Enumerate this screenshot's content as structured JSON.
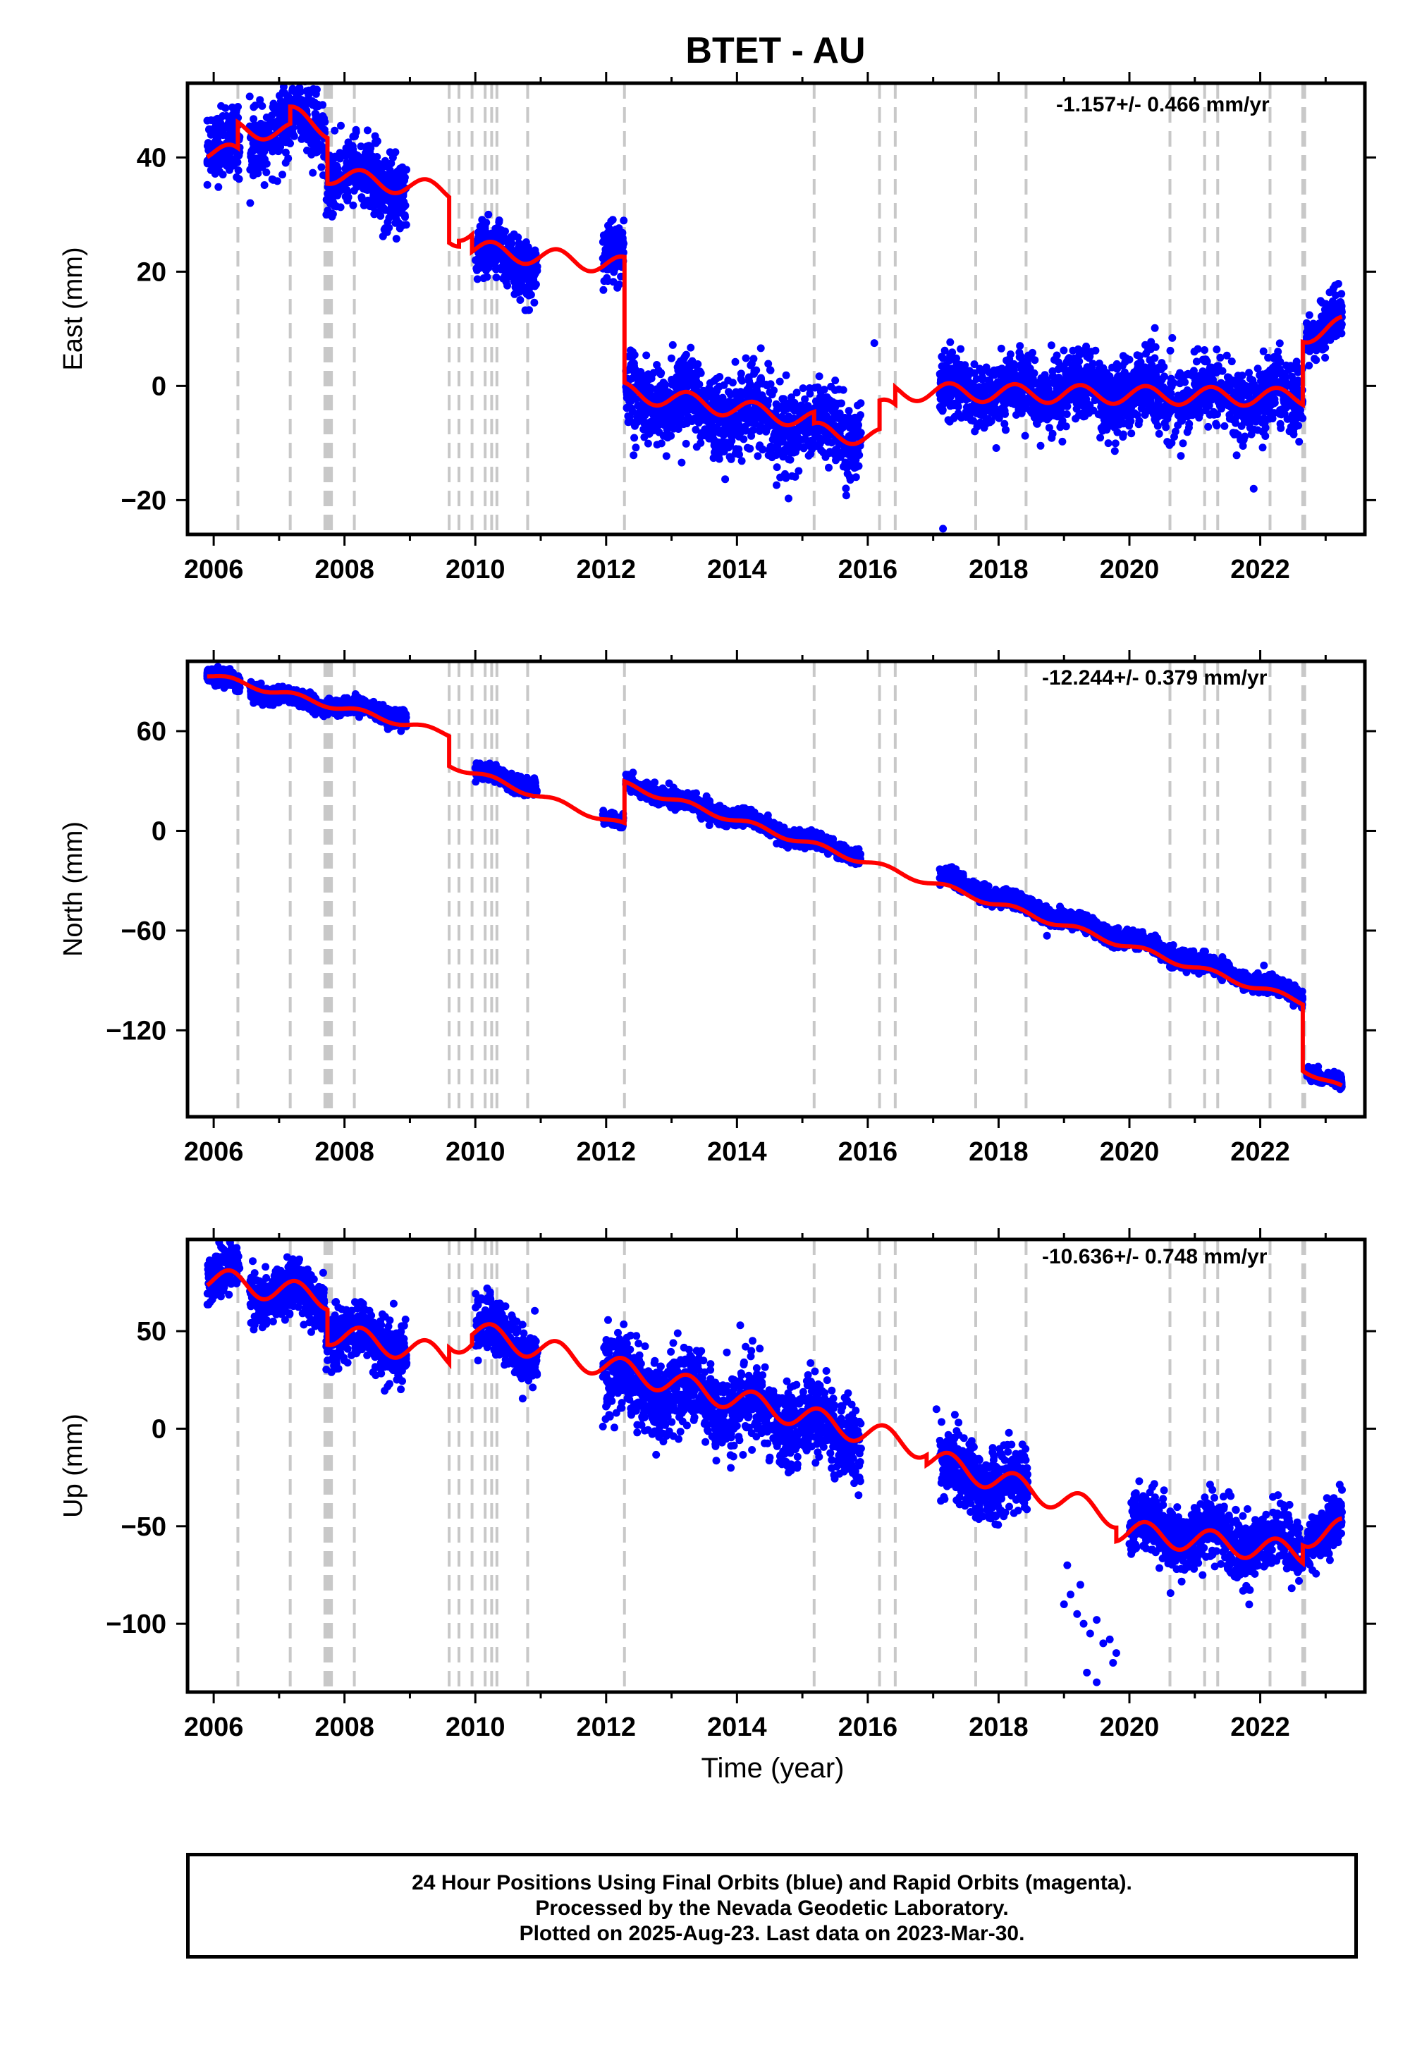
{
  "title": "BTET - AU",
  "x_axis_label": "Time (year)",
  "caption": {
    "line1": "24 Hour Positions Using Final Orbits (blue) and Rapid Orbits (magenta).",
    "line2": "Processed by the Nevada Geodetic Laboratory.",
    "line3": "Plotted on 2025-Aug-23. Last data on 2023-Mar-30."
  },
  "colors": {
    "observations": "#0000ff",
    "model": "#ff0000",
    "events": "#c8c8c8"
  },
  "chart_data": [
    {
      "type": "scatter",
      "ylabel": "East (mm)",
      "rate_label": "-1.157+/- 0.466 mm/yr",
      "xlim": [
        2005.6,
        2023.6
      ],
      "ylim": [
        -26,
        53
      ],
      "yticks": [
        -20,
        0,
        20,
        40
      ],
      "xticks": [
        2006,
        2008,
        2010,
        2012,
        2014,
        2016,
        2018,
        2020,
        2022
      ],
      "events": [
        2006.37,
        2007.17,
        2007.7,
        2007.74,
        2007.78,
        2007.8,
        2008.15,
        2009.6,
        2009.75,
        2009.95,
        2010.15,
        2010.25,
        2010.33,
        2010.8,
        2012.28,
        2015.18,
        2016.18,
        2016.42,
        2017.65,
        2018.42,
        2020.62,
        2021.15,
        2021.35,
        2022.15,
        2022.65,
        2022.68
      ],
      "observations": [
        {
          "x": [
            2005.9,
            2006.4
          ],
          "y": [
            41,
            42
          ],
          "scatter": 3
        },
        {
          "x": [
            2006.55,
            2007.25
          ],
          "y": [
            43,
            46
          ],
          "scatter": 3
        },
        {
          "x": [
            2007.25,
            2007.7
          ],
          "y": [
            46,
            46
          ],
          "scatter": 3
        },
        {
          "x": [
            2007.72,
            2008.95
          ],
          "y": [
            37,
            35
          ],
          "scatter": 3
        },
        {
          "x": [
            2010.0,
            2010.95
          ],
          "y": [
            23,
            21
          ],
          "scatter": 2.5
        },
        {
          "x": [
            2011.95,
            2012.27
          ],
          "y": [
            23,
            22
          ],
          "scatter": 2.5
        },
        {
          "x": [
            2012.3,
            2015.9
          ],
          "y": [
            -1,
            -9
          ],
          "scatter": 3.5
        },
        {
          "x": [
            2017.1,
            2022.65
          ],
          "y": [
            -1,
            -2
          ],
          "scatter": 3
        },
        {
          "x": [
            2022.7,
            2023.25
          ],
          "y": [
            10,
            11
          ],
          "scatter": 2
        }
      ],
      "outliers": [
        [
          2017.15,
          -25
        ],
        [
          2016.1,
          7.5
        ],
        [
          2021.9,
          -18
        ],
        [
          2010.2,
          30
        ],
        [
          2007.05,
          37
        ]
      ],
      "model": {
        "segments": [
          {
            "x": [
              2005.9,
              2006.37
            ],
            "y": [
              41,
              40.5
            ]
          },
          {
            "x": [
              2006.37,
              2007.17
            ],
            "y": [
              45,
              44.5
            ]
          },
          {
            "x": [
              2007.17,
              2007.74
            ],
            "y": [
              47.5,
              45
            ]
          },
          {
            "x": [
              2007.74,
              2009.6
            ],
            "y": [
              37,
              34
            ]
          },
          {
            "x": [
              2009.6,
              2009.75
            ],
            "y": [
              26,
              26
            ]
          },
          {
            "x": [
              2009.75,
              2009.95
            ],
            "y": [
              27,
              27
            ]
          },
          {
            "x": [
              2009.95,
              2012.28
            ],
            "y": [
              24,
              21
            ]
          },
          {
            "x": [
              2012.28,
              2015.18
            ],
            "y": [
              -1,
              -6
            ]
          },
          {
            "x": [
              2015.18,
              2016.18
            ],
            "y": [
              -8,
              -9
            ]
          },
          {
            "x": [
              2016.18,
              2016.42
            ],
            "y": [
              -4,
              -4
            ]
          },
          {
            "x": [
              2016.42,
              2022.65
            ],
            "y": [
              -1,
              -2
            ]
          },
          {
            "x": [
              2022.65,
              2023.25
            ],
            "y": [
              9,
              10.5
            ]
          }
        ],
        "seasonal_amplitude": 1.6
      }
    },
    {
      "type": "scatter",
      "ylabel": "North (mm)",
      "rate_label": "-12.244+/- 0.379 mm/yr",
      "xlim": [
        2005.6,
        2023.6
      ],
      "ylim": [
        -172,
        102
      ],
      "yticks": [
        -120,
        -60,
        0,
        60
      ],
      "xticks": [
        2006,
        2008,
        2010,
        2012,
        2014,
        2016,
        2018,
        2020,
        2022
      ],
      "events": [
        2006.37,
        2007.17,
        2007.7,
        2007.74,
        2007.78,
        2007.8,
        2008.15,
        2009.6,
        2009.75,
        2009.95,
        2010.15,
        2010.25,
        2010.33,
        2010.8,
        2012.28,
        2015.18,
        2016.18,
        2016.42,
        2017.65,
        2018.42,
        2020.62,
        2021.15,
        2021.35,
        2022.15,
        2022.65,
        2022.68
      ],
      "observations": [
        {
          "x": [
            2005.9,
            2006.4
          ],
          "y": [
            95,
            87
          ],
          "scatter": 2.5
        },
        {
          "x": [
            2006.55,
            2007.7
          ],
          "y": [
            85,
            75
          ],
          "scatter": 2.5
        },
        {
          "x": [
            2007.72,
            2008.95
          ],
          "y": [
            77,
            68
          ],
          "scatter": 2.5
        },
        {
          "x": [
            2010.0,
            2010.95
          ],
          "y": [
            36,
            26
          ],
          "scatter": 2.5
        },
        {
          "x": [
            2011.95,
            2012.27
          ],
          "y": [
            8,
            3
          ],
          "scatter": 2
        },
        {
          "x": [
            2012.3,
            2015.9
          ],
          "y": [
            28,
            -15
          ],
          "scatter": 2.5
        },
        {
          "x": [
            2017.1,
            2022.65
          ],
          "y": [
            -28,
            -100
          ],
          "scatter": 2.5
        },
        {
          "x": [
            2022.7,
            2023.25
          ],
          "y": [
            -143,
            -153
          ],
          "scatter": 2
        }
      ],
      "outliers": [],
      "model": {
        "segments": [
          {
            "x": [
              2005.9,
              2009.6
            ],
            "y": [
              94,
              58
            ]
          },
          {
            "x": [
              2009.6,
              2012.28
            ],
            "y": [
              40,
              3
            ]
          },
          {
            "x": [
              2012.28,
              2022.65
            ],
            "y": [
              28,
              -103
            ]
          },
          {
            "x": [
              2022.65,
              2023.25
            ],
            "y": [
              -143,
              -155
            ]
          }
        ],
        "seasonal_amplitude": 1.8
      }
    },
    {
      "type": "scatter",
      "ylabel": "Up (mm)",
      "rate_label": "-10.636+/- 0.748 mm/yr",
      "xlim": [
        2005.6,
        2023.6
      ],
      "ylim": [
        -135,
        97
      ],
      "yticks": [
        -100,
        -50,
        0,
        50
      ],
      "xticks": [
        2006,
        2008,
        2010,
        2012,
        2014,
        2016,
        2018,
        2020,
        2022
      ],
      "events": [
        2006.37,
        2007.17,
        2007.7,
        2007.74,
        2007.78,
        2007.8,
        2008.15,
        2009.6,
        2009.75,
        2009.95,
        2010.15,
        2010.25,
        2010.33,
        2010.8,
        2012.28,
        2015.18,
        2016.18,
        2016.42,
        2017.65,
        2018.42,
        2020.62,
        2021.15,
        2021.35,
        2022.15,
        2022.65,
        2022.68
      ],
      "observations": [
        {
          "x": [
            2005.9,
            2006.4
          ],
          "y": [
            76,
            80
          ],
          "scatter": 6
        },
        {
          "x": [
            2006.55,
            2007.7
          ],
          "y": [
            72,
            66
          ],
          "scatter": 7
        },
        {
          "x": [
            2007.72,
            2008.95
          ],
          "y": [
            50,
            42
          ],
          "scatter": 7
        },
        {
          "x": [
            2010.0,
            2010.95
          ],
          "y": [
            52,
            40
          ],
          "scatter": 7
        },
        {
          "x": [
            2011.95,
            2015.9
          ],
          "y": [
            28,
            -5
          ],
          "scatter": 10
        },
        {
          "x": [
            2017.1,
            2018.45
          ],
          "y": [
            -20,
            -32
          ],
          "scatter": 9
        },
        {
          "x": [
            2020.0,
            2022.65
          ],
          "y": [
            -50,
            -62
          ],
          "scatter": 8
        },
        {
          "x": [
            2022.7,
            2023.25
          ],
          "y": [
            -55,
            -50
          ],
          "scatter": 6
        }
      ],
      "outliers": [
        [
          2019.0,
          -90
        ],
        [
          2019.1,
          -85
        ],
        [
          2019.2,
          -95
        ],
        [
          2019.3,
          -100
        ],
        [
          2019.4,
          -105
        ],
        [
          2019.5,
          -98
        ],
        [
          2019.6,
          -110
        ],
        [
          2019.7,
          -108
        ],
        [
          2019.75,
          -120
        ],
        [
          2019.8,
          -115
        ],
        [
          2019.35,
          -125
        ],
        [
          2019.5,
          -130
        ],
        [
          2019.05,
          -70
        ],
        [
          2019.25,
          -80
        ],
        [
          2014.05,
          53
        ],
        [
          2017.05,
          10
        ]
      ],
      "model": {
        "segments": [
          {
            "x": [
              2005.9,
              2007.74
            ],
            "y": [
              77,
              67
            ]
          },
          {
            "x": [
              2007.74,
              2009.6
            ],
            "y": [
              49,
              37
            ]
          },
          {
            "x": [
              2009.6,
              2009.95
            ],
            "y": [
              45,
              45
            ]
          },
          {
            "x": [
              2009.95,
              2016.9
            ],
            "y": [
              50,
              -10
            ]
          },
          {
            "x": [
              2016.9,
              2019.8
            ],
            "y": [
              -15,
              -45
            ]
          },
          {
            "x": [
              2019.8,
              2022.65
            ],
            "y": [
              -52,
              -64
            ]
          },
          {
            "x": [
              2022.65,
              2023.25
            ],
            "y": [
              -55,
              -52
            ]
          }
        ],
        "seasonal_amplitude": 6
      }
    }
  ]
}
